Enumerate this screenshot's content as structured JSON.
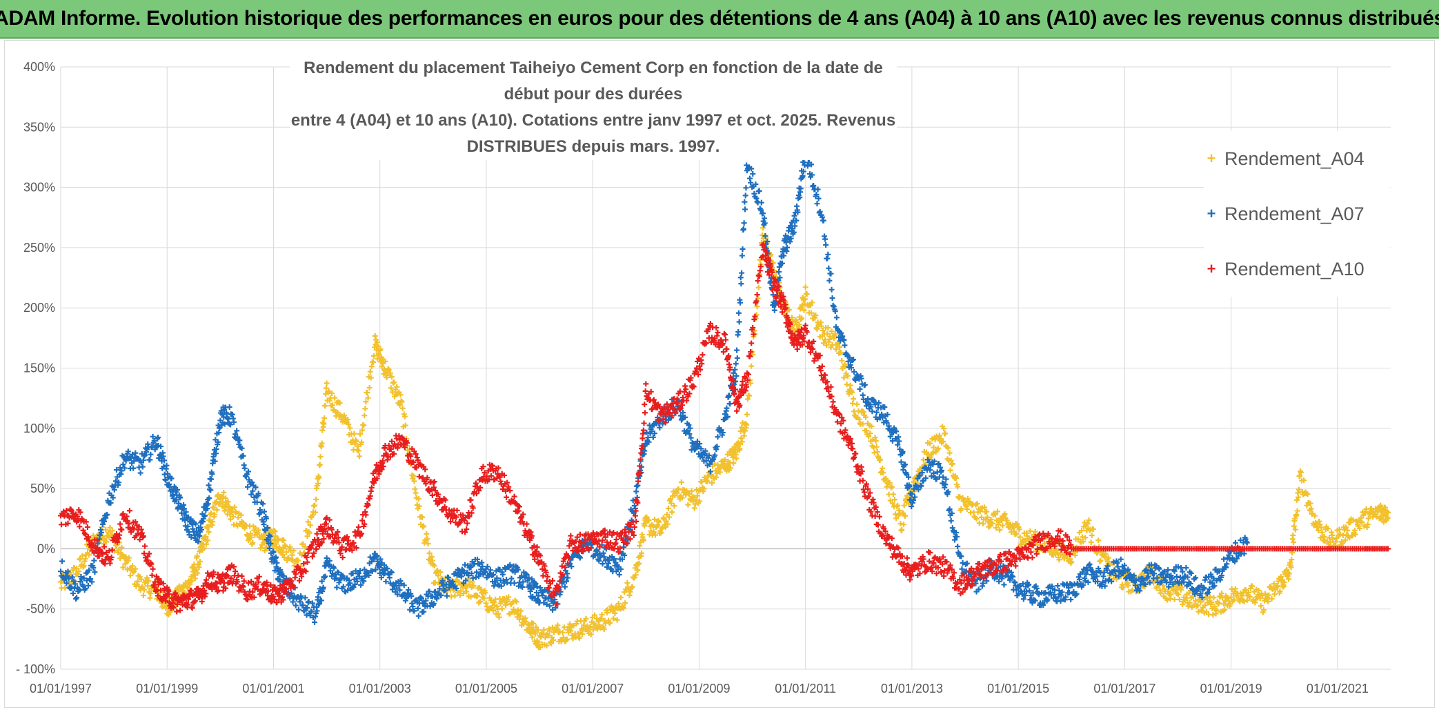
{
  "banner": {
    "title": "ADAM Informe. Evolution historique des performances en euros pour des détentions de 4 ans (A04) à 10 ans (A10) avec les revenus connus distribués"
  },
  "chart_data": {
    "type": "scatter",
    "title_line1": "Rendement du placement Taiheiyo Cement Corp en fonction de la date de début pour des durées",
    "title_line2": "entre 4 (A04) et 10 ans (A10). Cotations entre janv 1997 et oct. 2025. Revenus DISTRIBUES depuis mars. 1997.",
    "xlabel": "",
    "ylabel": "",
    "xlim": [
      1997.0,
      2022.0
    ],
    "ylim": [
      -100,
      400
    ],
    "y_ticks": [
      -100,
      -50,
      0,
      50,
      100,
      150,
      200,
      250,
      300,
      350,
      400
    ],
    "y_tick_labels": [
      "- 100%",
      "-50%",
      "0%",
      "50%",
      "100%",
      "150%",
      "200%",
      "250%",
      "300%",
      "350%",
      "400%"
    ],
    "x_ticks": [
      1997,
      1999,
      2001,
      2003,
      2005,
      2007,
      2009,
      2011,
      2013,
      2015,
      2017,
      2019,
      2021
    ],
    "x_tick_labels": [
      "01/01/1997",
      "01/01/1999",
      "01/01/2001",
      "01/01/2003",
      "01/01/2005",
      "01/01/2007",
      "01/01/2009",
      "01/01/2011",
      "01/01/2013",
      "01/01/2015",
      "01/01/2017",
      "01/01/2019",
      "01/01/2021"
    ],
    "grid": true,
    "legend_position": "top-right",
    "series": [
      {
        "name": "Rendement_A04",
        "color": "#f2c12e",
        "x": [
          1997.0,
          1997.3,
          1997.6,
          1997.9,
          1998.2,
          1998.5,
          1998.8,
          1999.0,
          1999.2,
          1999.4,
          1999.6,
          1999.8,
          2000.0,
          2000.2,
          2000.5,
          2000.8,
          2001.0,
          2001.2,
          2001.5,
          2001.8,
          2002.0,
          2002.3,
          2002.6,
          2002.9,
          2003.1,
          2003.4,
          2003.7,
          2004.0,
          2004.3,
          2004.6,
          2004.9,
          2005.2,
          2005.5,
          2005.8,
          2006.0,
          2006.3,
          2006.6,
          2006.9,
          2007.2,
          2007.5,
          2007.8,
          2008.0,
          2008.3,
          2008.6,
          2008.9,
          2009.2,
          2009.5,
          2009.7,
          2009.9,
          2010.2,
          2010.4,
          2010.6,
          2010.8,
          2011.0,
          2011.3,
          2011.6,
          2011.9,
          2012.2,
          2012.5,
          2012.8,
          2013.0,
          2013.3,
          2013.6,
          2013.9,
          2014.2,
          2014.5,
          2014.8,
          2015.1,
          2015.4,
          2015.7,
          2016.0,
          2016.3,
          2016.6,
          2016.9,
          2017.2,
          2017.5,
          2017.8,
          2018.1,
          2018.4,
          2018.7,
          2019.0,
          2019.3,
          2019.6,
          2019.9,
          2020.1,
          2020.3,
          2020.6,
          2020.9,
          2021.2,
          2021.5,
          2021.8,
          2021.95
        ],
        "y": [
          -30,
          -20,
          5,
          15,
          -10,
          -30,
          -35,
          -48,
          -40,
          -30,
          -10,
          20,
          45,
          30,
          15,
          5,
          10,
          0,
          -10,
          40,
          130,
          110,
          80,
          170,
          150,
          120,
          40,
          -20,
          -35,
          -30,
          -40,
          -50,
          -45,
          -65,
          -75,
          -70,
          -68,
          -65,
          -60,
          -50,
          -20,
          20,
          15,
          50,
          40,
          60,
          70,
          80,
          110,
          260,
          230,
          200,
          180,
          210,
          180,
          170,
          120,
          100,
          60,
          20,
          50,
          80,
          95,
          40,
          30,
          25,
          20,
          10,
          5,
          0,
          -5,
          20,
          -10,
          -25,
          -30,
          -20,
          -35,
          -40,
          -45,
          -48,
          -40,
          -35,
          -45,
          -30,
          -20,
          60,
          20,
          5,
          15,
          25,
          30,
          30
        ]
      },
      {
        "name": "Rendement_A07",
        "color": "#1f6fbf",
        "x": [
          1997.0,
          1997.3,
          1997.6,
          1997.9,
          1998.2,
          1998.5,
          1998.8,
          1999.0,
          1999.2,
          1999.4,
          1999.6,
          1999.8,
          2000.0,
          2000.2,
          2000.5,
          2000.8,
          2001.0,
          2001.2,
          2001.5,
          2001.8,
          2002.0,
          2002.3,
          2002.6,
          2002.9,
          2003.1,
          2003.4,
          2003.7,
          2004.0,
          2004.3,
          2004.6,
          2004.9,
          2005.2,
          2005.5,
          2005.8,
          2006.0,
          2006.3,
          2006.6,
          2006.9,
          2007.2,
          2007.5,
          2007.8,
          2008.0,
          2008.3,
          2008.6,
          2008.9,
          2009.2,
          2009.5,
          2009.7,
          2009.9,
          2010.2,
          2010.4,
          2010.6,
          2010.8,
          2011.0,
          2011.3,
          2011.6,
          2011.9,
          2012.2,
          2012.5,
          2012.8,
          2013.0,
          2013.3,
          2013.6,
          2013.9,
          2014.2,
          2014.5,
          2014.8,
          2015.1,
          2015.4,
          2015.7,
          2016.0,
          2016.3,
          2016.6,
          2016.9,
          2017.2,
          2017.5,
          2017.8,
          2018.1,
          2018.4,
          2018.7,
          2019.0,
          2019.3
        ],
        "y": [
          -15,
          -35,
          -20,
          40,
          75,
          70,
          90,
          60,
          40,
          20,
          10,
          50,
          110,
          110,
          60,
          30,
          -10,
          -30,
          -45,
          -55,
          -15,
          -30,
          -25,
          -10,
          -20,
          -35,
          -50,
          -40,
          -30,
          -20,
          -15,
          -25,
          -20,
          -30,
          -40,
          -45,
          -10,
          5,
          -5,
          -15,
          40,
          90,
          110,
          120,
          85,
          70,
          110,
          150,
          320,
          280,
          200,
          250,
          270,
          330,
          280,
          180,
          150,
          120,
          110,
          80,
          40,
          70,
          60,
          -10,
          -30,
          -15,
          -25,
          -35,
          -40,
          -38,
          -35,
          -20,
          -25,
          -15,
          -30,
          -20,
          -25,
          -20,
          -35,
          -25,
          -5,
          5
        ]
      },
      {
        "name": "Rendement_A10",
        "color": "#e81e1e",
        "x": [
          1997.0,
          1997.3,
          1997.6,
          1997.9,
          1998.2,
          1998.5,
          1998.8,
          1999.0,
          1999.2,
          1999.4,
          1999.6,
          1999.8,
          2000.0,
          2000.2,
          2000.5,
          2000.8,
          2001.0,
          2001.2,
          2001.5,
          2001.8,
          2002.0,
          2002.3,
          2002.6,
          2002.9,
          2003.1,
          2003.4,
          2003.7,
          2004.0,
          2004.3,
          2004.6,
          2004.9,
          2005.2,
          2005.5,
          2005.8,
          2006.0,
          2006.3,
          2006.6,
          2006.9,
          2007.2,
          2007.5,
          2007.8,
          2008.0,
          2008.3,
          2008.6,
          2008.9,
          2009.2,
          2009.5,
          2009.7,
          2009.9,
          2010.2,
          2010.4,
          2010.6,
          2010.8,
          2011.0,
          2011.3,
          2011.6,
          2011.9,
          2012.2,
          2012.5,
          2012.8,
          2013.0,
          2013.3,
          2013.6,
          2013.9,
          2014.2,
          2014.5,
          2014.8,
          2015.1,
          2015.4,
          2015.7,
          2016.0,
          2016.5,
          2017.0,
          2017.5,
          2018.0,
          2018.5,
          2019.0,
          2019.5,
          2020.0,
          2020.5,
          2021.0,
          2021.5,
          2021.95
        ],
        "y": [
          25,
          30,
          5,
          -10,
          30,
          10,
          -30,
          -40,
          -45,
          -42,
          -40,
          -25,
          -30,
          -20,
          -35,
          -30,
          -40,
          -35,
          -20,
          5,
          20,
          0,
          10,
          60,
          80,
          90,
          70,
          50,
          30,
          20,
          60,
          65,
          40,
          10,
          -10,
          -40,
          5,
          5,
          10,
          5,
          20,
          130,
          110,
          120,
          140,
          180,
          170,
          120,
          140,
          250,
          220,
          200,
          170,
          180,
          150,
          110,
          80,
          40,
          10,
          -10,
          -20,
          -10,
          -15,
          -30,
          -20,
          -15,
          -10,
          -5,
          5,
          10,
          0,
          0,
          0,
          0,
          0,
          0,
          0,
          0,
          0,
          0,
          0,
          0,
          0
        ]
      }
    ]
  }
}
